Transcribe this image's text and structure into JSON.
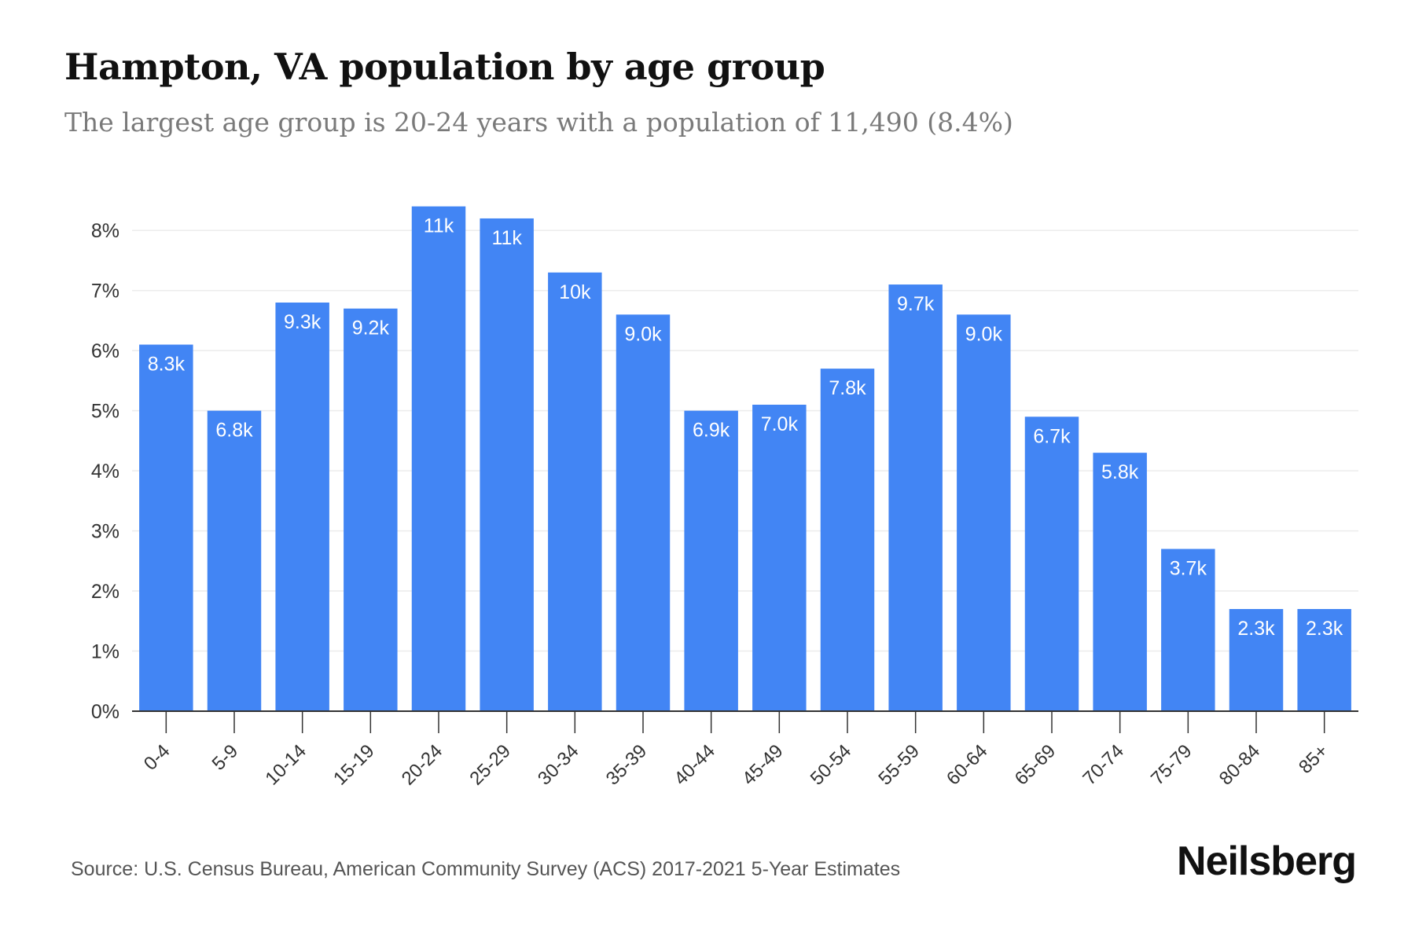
{
  "header": {
    "title": "Hampton, VA population by age group",
    "subtitle": "The largest age group is 20-24 years with a population of 11,490 (8.4%)"
  },
  "footer": {
    "source": "Source: U.S. Census Bureau, American Community Survey (ACS) 2017-2021 5-Year Estimates",
    "logo": "Neilsberg"
  },
  "colors": {
    "bar": "#4285f4",
    "grid": "#ececec",
    "axis": "#333333",
    "tick_text": "#333333",
    "label_text": "#ffffff"
  },
  "chart_data": {
    "type": "bar",
    "title": "Hampton, VA population by age group",
    "subtitle": "The largest age group is 20-24 years with a population of 11,490 (8.4%)",
    "categories": [
      "0-4",
      "5-9",
      "10-14",
      "15-19",
      "20-24",
      "25-29",
      "30-34",
      "35-39",
      "40-44",
      "45-49",
      "50-54",
      "55-59",
      "60-64",
      "65-69",
      "70-74",
      "75-79",
      "80-84",
      "85+"
    ],
    "values": [
      6.1,
      5.0,
      6.8,
      6.7,
      8.4,
      8.2,
      7.3,
      6.6,
      5.0,
      5.1,
      5.7,
      7.1,
      6.6,
      4.9,
      4.3,
      2.7,
      1.7,
      1.7
    ],
    "data_labels": [
      "8.3k",
      "6.8k",
      "9.3k",
      "9.2k",
      "11k",
      "11k",
      "10k",
      "9.0k",
      "6.9k",
      "7.0k",
      "7.8k",
      "9.7k",
      "9.0k",
      "6.7k",
      "5.8k",
      "3.7k",
      "2.3k",
      "2.3k"
    ],
    "ylim": [
      0,
      8.5
    ],
    "yticks": [
      0,
      1,
      2,
      3,
      4,
      5,
      6,
      7,
      8
    ],
    "ytick_labels": [
      "0%",
      "1%",
      "2%",
      "3%",
      "4%",
      "5%",
      "6%",
      "7%",
      "8%"
    ],
    "xlabel": "",
    "ylabel": "",
    "grid": true,
    "legend": "none"
  }
}
